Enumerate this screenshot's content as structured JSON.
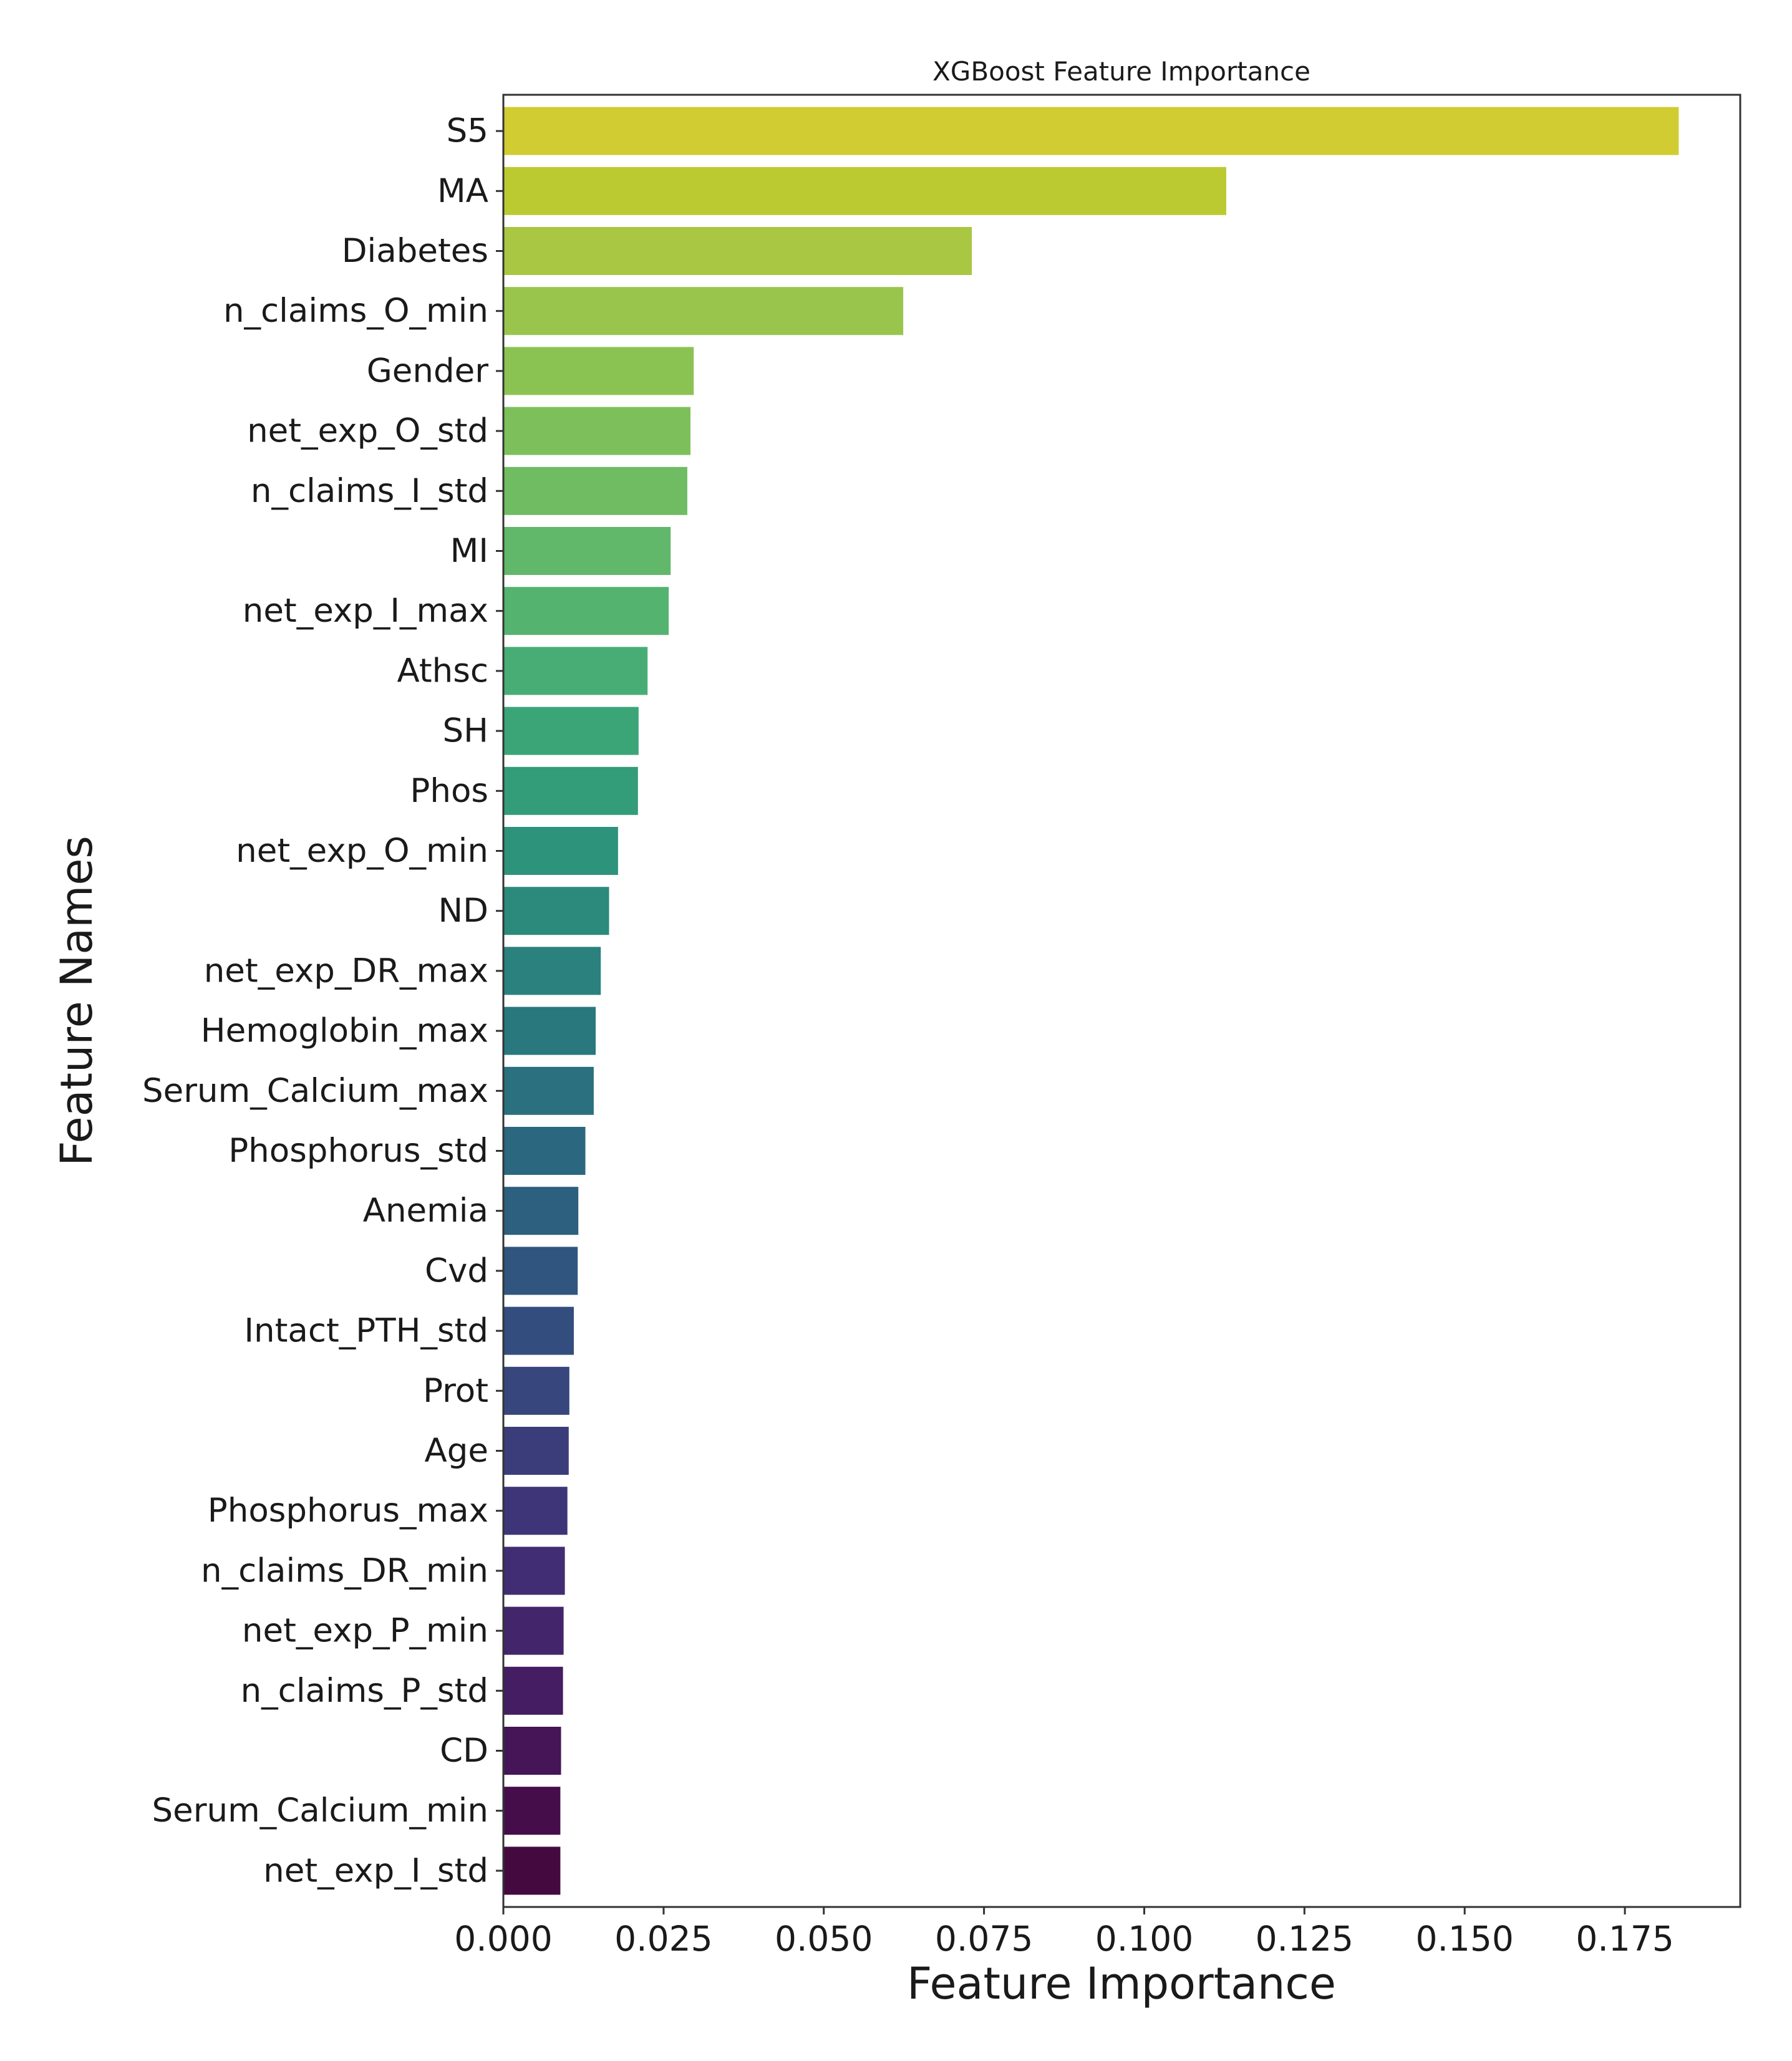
{
  "chart_data": {
    "type": "bar",
    "orientation": "horizontal",
    "title": "XGBoost Feature Importance",
    "xlabel": "Feature Importance",
    "ylabel": "Feature Names",
    "xlim": [
      0,
      0.193
    ],
    "xticks": [
      "0.000",
      "0.025",
      "0.050",
      "0.075",
      "0.100",
      "0.125",
      "0.150",
      "0.175"
    ],
    "xtick_values": [
      0,
      0.025,
      0.05,
      0.075,
      0.1,
      0.125,
      0.15,
      0.175
    ],
    "grid": false,
    "colormap": "viridis (reversed: yellow at top to purple at bottom)",
    "categories": [
      "S5",
      "MA",
      "Diabetes",
      "n_claims_O_min",
      "Gender",
      "net_exp_O_std",
      "n_claims_I_std",
      "MI",
      "net_exp_I_max",
      "Athsc",
      "SH",
      "Phos",
      "net_exp_O_min",
      "ND",
      "net_exp_DR_max",
      "Hemoglobin_max",
      "Serum_Calcium_max",
      "Phosphorus_std",
      "Anemia",
      "Cvd",
      "Intact_PTH_std",
      "Prot",
      "Age",
      "Phosphorus_max",
      "n_claims_DR_min",
      "net_exp_P_min",
      "n_claims_P_std",
      "CD",
      "Serum_Calcium_min",
      "net_exp_I_std"
    ],
    "values": [
      0.1834,
      0.1128,
      0.0731,
      0.0624,
      0.0297,
      0.0292,
      0.0287,
      0.0261,
      0.0258,
      0.0225,
      0.0211,
      0.021,
      0.0179,
      0.0165,
      0.0152,
      0.0144,
      0.0141,
      0.0128,
      0.0117,
      0.0116,
      0.011,
      0.0103,
      0.0102,
      0.01,
      0.0096,
      0.0094,
      0.0093,
      0.009,
      0.0089,
      0.0089
    ],
    "colors": [
      "#d0cc31",
      "#bcca32",
      "#a9c743",
      "#9ac54c",
      "#8bc353",
      "#7dc05b",
      "#6fbc63",
      "#62b86a",
      "#55b370",
      "#48ad74",
      "#3ca577",
      "#339c79",
      "#2d937b",
      "#2b8a7c",
      "#2a817d",
      "#29787e",
      "#2a707e",
      "#2b677f",
      "#2d5f7f",
      "#30567f",
      "#334e7e",
      "#37467d",
      "#3b3d7b",
      "#3e3578",
      "#412d73",
      "#43256c",
      "#441d63",
      "#451557",
      "#450e4b",
      "#440a3f"
    ]
  }
}
